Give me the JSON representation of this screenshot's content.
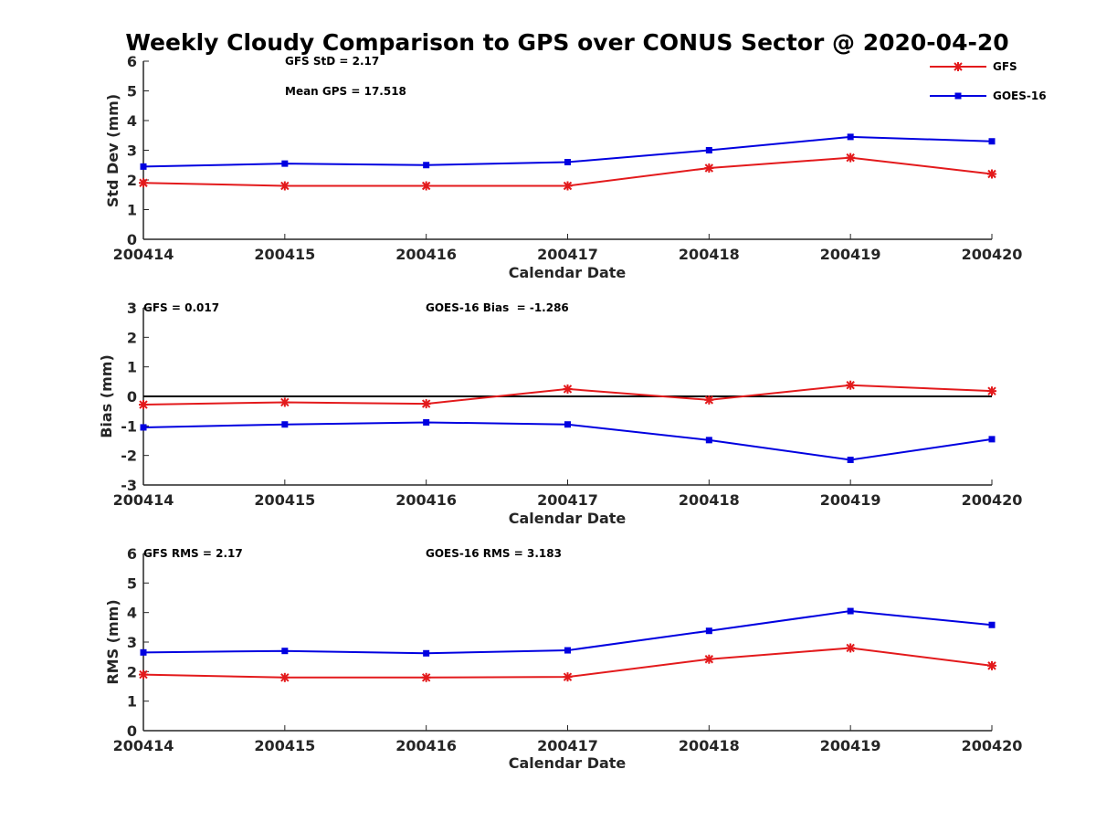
{
  "title": "Weekly Cloudy Comparison to GPS over CONUS Sector @ 2020-04-20",
  "colors": {
    "gfs": "#e31a1c",
    "goes": "#0000e0",
    "axis": "#262626",
    "zero_line": "#000000"
  },
  "legend": {
    "placement": "top-right",
    "entries": [
      "GFS",
      "GOES-16"
    ]
  },
  "chart_data": [
    {
      "type": "line",
      "xlabel": "Calendar Date",
      "ylabel": "Std Dev (mm)",
      "ylim": [
        0,
        6
      ],
      "yticks": [
        "0",
        "1",
        "2",
        "3",
        "4",
        "5",
        "6"
      ],
      "categories": [
        "200414",
        "200415",
        "200416",
        "200417",
        "200418",
        "200419",
        "200420"
      ],
      "series": [
        {
          "name": "GFS",
          "marker": "asterisk",
          "values": [
            1.9,
            1.8,
            1.8,
            1.8,
            2.4,
            2.75,
            2.2
          ]
        },
        {
          "name": "GOES-16",
          "marker": "square",
          "values": [
            2.45,
            2.55,
            2.5,
            2.6,
            3.0,
            3.45,
            3.3
          ]
        }
      ],
      "annotations": [
        "GFS StD = 2.17",
        "Mean GPS = 17.518"
      ]
    },
    {
      "type": "line",
      "xlabel": "Calendar Date",
      "ylabel": "Bias (mm)",
      "ylim": [
        -3,
        3
      ],
      "yticks": [
        "-3",
        "-2",
        "-1",
        "0",
        "1",
        "2",
        "3"
      ],
      "categories": [
        "200414",
        "200415",
        "200416",
        "200417",
        "200418",
        "200419",
        "200420"
      ],
      "reference_line": 0,
      "series": [
        {
          "name": "GFS",
          "marker": "asterisk",
          "values": [
            -0.28,
            -0.2,
            -0.25,
            0.25,
            -0.12,
            0.38,
            0.18
          ]
        },
        {
          "name": "GOES-16",
          "marker": "square",
          "values": [
            -1.05,
            -0.95,
            -0.88,
            -0.95,
            -1.48,
            -2.15,
            -1.45
          ]
        }
      ],
      "annotations": [
        "GFS = 0.017",
        "GOES-16 Bias  = -1.286"
      ]
    },
    {
      "type": "line",
      "xlabel": "Calendar Date",
      "ylabel": "RMS (mm)",
      "ylim": [
        0,
        6
      ],
      "yticks": [
        "0",
        "1",
        "2",
        "3",
        "4",
        "5",
        "6"
      ],
      "categories": [
        "200414",
        "200415",
        "200416",
        "200417",
        "200418",
        "200419",
        "200420"
      ],
      "series": [
        {
          "name": "GFS",
          "marker": "asterisk",
          "values": [
            1.9,
            1.8,
            1.8,
            1.82,
            2.42,
            2.8,
            2.2
          ]
        },
        {
          "name": "GOES-16",
          "marker": "square",
          "values": [
            2.65,
            2.7,
            2.62,
            2.72,
            3.38,
            4.05,
            3.58
          ]
        }
      ],
      "annotations": [
        "GFS RMS = 2.17",
        "GOES-16 RMS = 3.183"
      ]
    }
  ]
}
